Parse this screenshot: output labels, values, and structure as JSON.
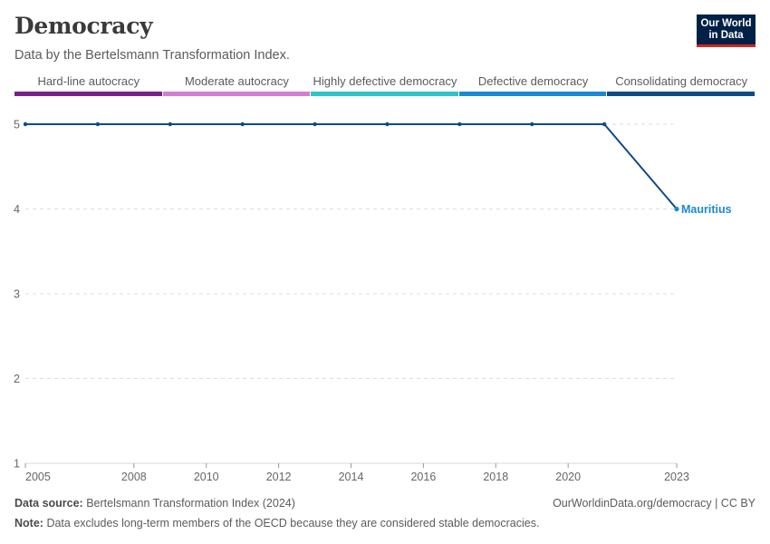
{
  "header": {
    "title": "Democracy",
    "subtitle": "Data by the Bertelsmann Transformation Index.",
    "logo_line1": "Our World",
    "logo_line2": "in Data"
  },
  "legend": {
    "items": [
      {
        "label": "Hard-line autocracy",
        "color": "#7a1f8c"
      },
      {
        "label": "Moderate autocracy",
        "color": "#d27ed6"
      },
      {
        "label": "Highly defective democracy",
        "color": "#2ec3c8"
      },
      {
        "label": "Defective democracy",
        "color": "#1b8ad3"
      },
      {
        "label": "Consolidating democracy",
        "color": "#0d4a85"
      }
    ]
  },
  "chart_data": {
    "type": "line",
    "title": "Democracy",
    "subtitle": "Data by the Bertelsmann Transformation Index.",
    "xlabel": "",
    "ylabel": "",
    "xlim": [
      2005,
      2023
    ],
    "ylim": [
      1,
      5
    ],
    "x_ticks": [
      2005,
      2008,
      2010,
      2012,
      2014,
      2016,
      2018,
      2020,
      2023
    ],
    "y_ticks": [
      1,
      2,
      3,
      4,
      5
    ],
    "grid": "horizontal dashed",
    "series": [
      {
        "name": "Mauritius",
        "x": [
          2005,
          2007,
          2009,
          2011,
          2013,
          2015,
          2017,
          2019,
          2021,
          2023
        ],
        "y": [
          5,
          5,
          5,
          5,
          5,
          5,
          5,
          5,
          5,
          4
        ],
        "line_color": "#0d4a85",
        "label_color": "#1b8ad3"
      }
    ]
  },
  "footer": {
    "source_label": "Data source:",
    "source_text": "Bertelsmann Transformation Index (2024)",
    "note_label": "Note:",
    "note_text": "Data excludes long-term members of the OECD because they are considered stable democracies.",
    "credit": "OurWorldinData.org/democracy | CC BY"
  }
}
